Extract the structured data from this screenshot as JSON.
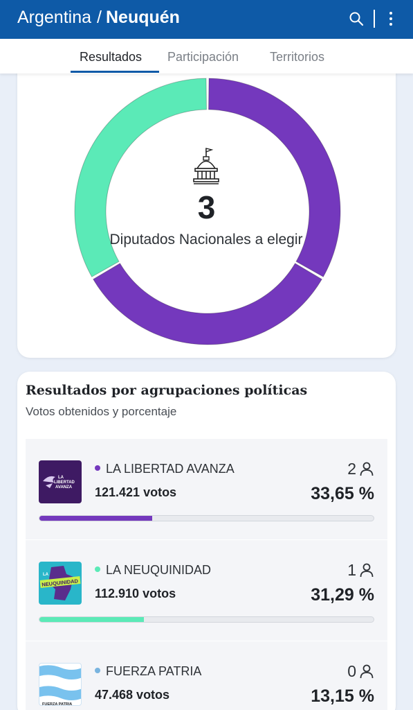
{
  "header": {
    "country": "Argentina",
    "separator": "/",
    "region": "Neuquén",
    "icons": [
      "search-icon",
      "more-vert-icon"
    ]
  },
  "tabs": [
    {
      "label": "Resultados",
      "active": true
    },
    {
      "label": "Participación",
      "active": false
    },
    {
      "label": "Territorios",
      "active": false
    }
  ],
  "seats_card": {
    "icon": "capitol-icon",
    "count": "3",
    "label": "Diputados Nacionales a elegir",
    "seat_distribution": [
      {
        "party": "LA LIBERTAD AVANZA",
        "seats": 2,
        "color": "#7438bd"
      },
      {
        "party": "LA NEUQUINIDAD",
        "seats": 1,
        "color": "#5beab7"
      }
    ]
  },
  "results": {
    "title": "Resultados por agrupaciones políticas",
    "subtitle": "Votos obtenidos y porcentaje",
    "parties": [
      {
        "name": "LA LIBERTAD AVANZA",
        "votes": "121.421 votos",
        "seats": "2",
        "percent": "33,65 %",
        "share": 0.3365,
        "color": "#7438bd",
        "logo_text": "LA LIBERTAD AVANZA"
      },
      {
        "name": "LA NEUQUINIDAD",
        "votes": "112.910 votos",
        "seats": "1",
        "percent": "31,29 %",
        "share": 0.3129,
        "color": "#5beab7",
        "logo_text": "LA NEUQUINIDAD"
      },
      {
        "name": "FUERZA PATRIA",
        "votes": "47.468 votos",
        "seats": "0",
        "percent": "13,15 %",
        "share": 0.1315,
        "color": "#79b4df",
        "logo_text": "FUERZA PATRIA"
      }
    ]
  }
}
